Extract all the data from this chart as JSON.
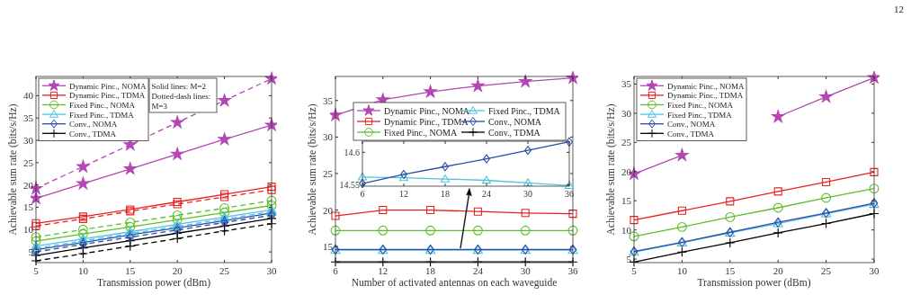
{
  "chart_data": [
    {
      "type": "line",
      "xlabel": "Transmission power (dBm)",
      "ylabel": "Achievable sum rate (bits/s/Hz)",
      "x": [
        5,
        10,
        15,
        20,
        25,
        30
      ],
      "xlim": [
        5,
        30
      ],
      "xticks": [
        5,
        10,
        15,
        20,
        25,
        30
      ],
      "ylim": [
        2.6,
        44.3
      ],
      "yticks": [
        5,
        10,
        15,
        20,
        25,
        30,
        35,
        40
      ],
      "legend": "top left",
      "annotations": [
        "Solid lines: M=2",
        "Dotted-dash lines: M=3"
      ],
      "series": [
        {
          "name": "Dynamic Pinc., NOMA",
          "color": "#b447b4",
          "marker": "star",
          "line_style": "solid",
          "values": [
            17.0,
            20.3,
            23.6,
            26.9,
            30.2,
            33.4
          ]
        },
        {
          "name": "Dynamic Pinc., TDMA",
          "color": "#e8211f",
          "marker": "square",
          "line_style": "solid",
          "values": [
            11.4,
            12.9,
            14.5,
            16.2,
            17.9,
            19.6
          ]
        },
        {
          "name": "Fixed Pinc., NOMA",
          "color": "#5cbf2a",
          "marker": "circle",
          "line_style": "solid",
          "values": [
            7.4,
            9.0,
            10.6,
            12.2,
            13.8,
            15.4
          ]
        },
        {
          "name": "Fixed Pinc., TDMA",
          "color": "#4fc3de",
          "marker": "triangle",
          "line_style": "solid",
          "values": [
            6.3,
            7.9,
            9.5,
            11.2,
            12.8,
            14.4
          ]
        },
        {
          "name": "Conv., NOMA",
          "color": "#2a4ca8",
          "marker": "diamond",
          "line_style": "solid",
          "values": [
            5.5,
            7.1,
            8.8,
            10.4,
            12.0,
            13.7
          ]
        },
        {
          "name": "Conv., TDMA",
          "color": "#000000",
          "marker": "cross",
          "line_style": "solid",
          "values": [
            4.2,
            5.9,
            7.5,
            9.2,
            10.8,
            12.5
          ]
        },
        {
          "color": "#b447b4",
          "marker": "star",
          "line_style": "dashed",
          "values": [
            19.2,
            24.1,
            29.0,
            34.0,
            38.9,
            43.8
          ]
        },
        {
          "color": "#e8211f",
          "marker": "square",
          "line_style": "dashed",
          "values": [
            10.8,
            12.4,
            14.1,
            15.7,
            17.3,
            18.9
          ]
        },
        {
          "color": "#5cbf2a",
          "marker": "circle",
          "line_style": "dashed",
          "values": [
            8.3,
            10.0,
            11.6,
            13.2,
            14.8,
            16.5
          ]
        },
        {
          "color": "#4fc3de",
          "marker": "triangle",
          "line_style": "dashed",
          "values": [
            5.8,
            7.5,
            9.1,
            10.7,
            12.4,
            14.0
          ]
        },
        {
          "color": "#2a4ca8",
          "marker": "diamond",
          "line_style": "dashed",
          "values": [
            5.0,
            6.7,
            8.3,
            9.9,
            11.6,
            13.2
          ]
        },
        {
          "color": "#000000",
          "marker": "cross",
          "line_style": "dashed",
          "values": [
            3.0,
            4.6,
            6.3,
            8.0,
            9.7,
            11.3
          ]
        }
      ]
    },
    {
      "type": "line",
      "xlabel": "Number of activated antennas on each waveguide",
      "ylabel": "Achievable sum rate (bits/s/Hz)",
      "x": [
        6,
        12,
        18,
        24,
        30,
        36
      ],
      "xlim": [
        6,
        36
      ],
      "xticks": [
        6,
        12,
        18,
        24,
        30,
        36
      ],
      "ylim": [
        12.8,
        38.3
      ],
      "yticks": [
        15,
        20,
        25,
        30,
        35
      ],
      "legend": "top",
      "series": [
        {
          "name": "Dynamic Pinc., NOMA",
          "color": "#b447b4",
          "marker": "star",
          "line_style": "solid",
          "values": [
            33.0,
            35.1,
            36.2,
            37.0,
            37.6,
            38.1
          ]
        },
        {
          "name": "Dynamic Pinc., TDMA",
          "color": "#e8211f",
          "marker": "square",
          "line_style": "solid",
          "values": [
            19.2,
            20.0,
            20.0,
            19.8,
            19.6,
            19.5
          ]
        },
        {
          "name": "Fixed Pinc., NOMA",
          "color": "#5cbf2a",
          "marker": "circle",
          "line_style": "solid",
          "values": [
            17.2,
            17.2,
            17.2,
            17.2,
            17.2,
            17.2
          ]
        },
        {
          "name": "Fixed Pinc., TDMA",
          "color": "#4fc3de",
          "marker": "triangle",
          "line_style": "solid",
          "values": [
            14.5,
            14.5,
            14.5,
            14.5,
            14.5,
            14.5
          ]
        },
        {
          "name": "Conv., NOMA",
          "color": "#2a4ca8",
          "marker": "diamond",
          "line_style": "solid",
          "values": [
            14.6,
            14.6,
            14.6,
            14.6,
            14.6,
            14.6
          ]
        },
        {
          "name": "Conv., TDMA",
          "color": "#000000",
          "marker": "cross",
          "line_style": "solid",
          "values": [
            12.9,
            12.9,
            12.9,
            12.9,
            12.9,
            12.9
          ]
        }
      ]
    },
    {
      "type": "line",
      "xlabel": "Transmission power (dBm)",
      "ylabel": "Achievable sum rate (bits/s/Hz)",
      "x": [
        5,
        10,
        15,
        20,
        25,
        30
      ],
      "xlim": [
        5,
        30
      ],
      "xticks": [
        5,
        10,
        15,
        20,
        25,
        30
      ],
      "ylim": [
        4.4,
        36.3
      ],
      "yticks": [
        5,
        10,
        15,
        20,
        25,
        30,
        35
      ],
      "legend": "top left",
      "annotations": [
        "12"
      ],
      "series": [
        {
          "name": "Dynamic Pinc., NOMA",
          "color": "#b447b4",
          "marker": "star",
          "line_style": "solid",
          "values": [
            19.6,
            22.8,
            null,
            29.4,
            32.8,
            36.1
          ]
        },
        {
          "name": "Dynamic Pinc., TDMA",
          "color": "#e8211f",
          "marker": "square",
          "line_style": "solid",
          "values": [
            11.7,
            13.3,
            14.9,
            16.6,
            18.2,
            19.9
          ]
        },
        {
          "name": "Fixed Pinc., NOMA",
          "color": "#5cbf2a",
          "marker": "circle",
          "line_style": "solid",
          "values": [
            8.9,
            10.5,
            12.2,
            13.8,
            15.5,
            17.1
          ]
        },
        {
          "name": "Fixed Pinc., TDMA",
          "color": "#4fc3de",
          "marker": "triangle",
          "line_style": "solid",
          "values": [
            6.2,
            7.8,
            9.5,
            11.1,
            12.8,
            14.4
          ]
        },
        {
          "name": "Conv., NOMA",
          "color": "#2a4ca8",
          "marker": "diamond",
          "line_style": "solid",
          "values": [
            6.3,
            7.9,
            9.6,
            11.3,
            12.9,
            14.6
          ]
        },
        {
          "name": "Conv., TDMA",
          "color": "#000000",
          "marker": "cross",
          "line_style": "solid",
          "values": [
            4.5,
            6.2,
            7.8,
            9.5,
            11.1,
            12.8
          ]
        }
      ]
    },
    {
      "type": "line",
      "x": [
        6,
        12,
        18,
        24,
        30,
        36
      ],
      "xlim": [
        6,
        36
      ],
      "xticks": [
        6,
        12,
        18,
        24,
        30,
        36
      ],
      "ylim": [
        14.548,
        14.617
      ],
      "yticks": [
        14.55,
        14.6
      ],
      "series": [
        {
          "color": "#4fc3de",
          "marker": "triangle",
          "line_style": "solid",
          "values": [
            14.562,
            14.561,
            14.559,
            14.557,
            14.553,
            14.549
          ]
        },
        {
          "color": "#2a4ca8",
          "marker": "diamond",
          "line_style": "solid",
          "values": [
            14.552,
            14.566,
            14.578,
            14.59,
            14.603,
            14.616
          ]
        }
      ]
    }
  ]
}
